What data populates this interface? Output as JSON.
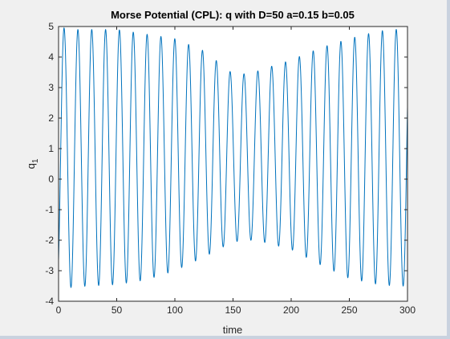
{
  "chart_data": {
    "type": "line",
    "title": "Morse Potential (CPL): q with D=50 a=0.15 b=0.05",
    "xlabel": "time",
    "ylabel_base": "q",
    "ylabel_sub": "1",
    "xlim": [
      0,
      300
    ],
    "ylim": [
      -4,
      5
    ],
    "x_ticks": [
      0,
      50,
      100,
      150,
      200,
      250,
      300
    ],
    "y_ticks": [
      -4,
      -3,
      -2,
      -1,
      0,
      1,
      2,
      3,
      4,
      5
    ],
    "series": [
      {
        "name": "q1",
        "color": "#0072bd",
        "period": 11.9,
        "phase": 2.5,
        "envelope_time": [
          0,
          10,
          25,
          50,
          75,
          100,
          125,
          150,
          165,
          175,
          200,
          225,
          250,
          275,
          290,
          300
        ],
        "envelope_max": [
          5.0,
          4.9,
          4.9,
          4.9,
          4.75,
          4.6,
          4.2,
          3.45,
          3.45,
          3.6,
          3.9,
          4.3,
          4.6,
          4.85,
          4.9,
          5.0
        ],
        "envelope_min": [
          -3.5,
          -3.55,
          -3.5,
          -3.45,
          -3.3,
          -3.0,
          -2.55,
          -2.05,
          -2.0,
          -2.05,
          -2.3,
          -2.8,
          -3.25,
          -3.45,
          -3.5,
          -3.5
        ]
      }
    ]
  }
}
